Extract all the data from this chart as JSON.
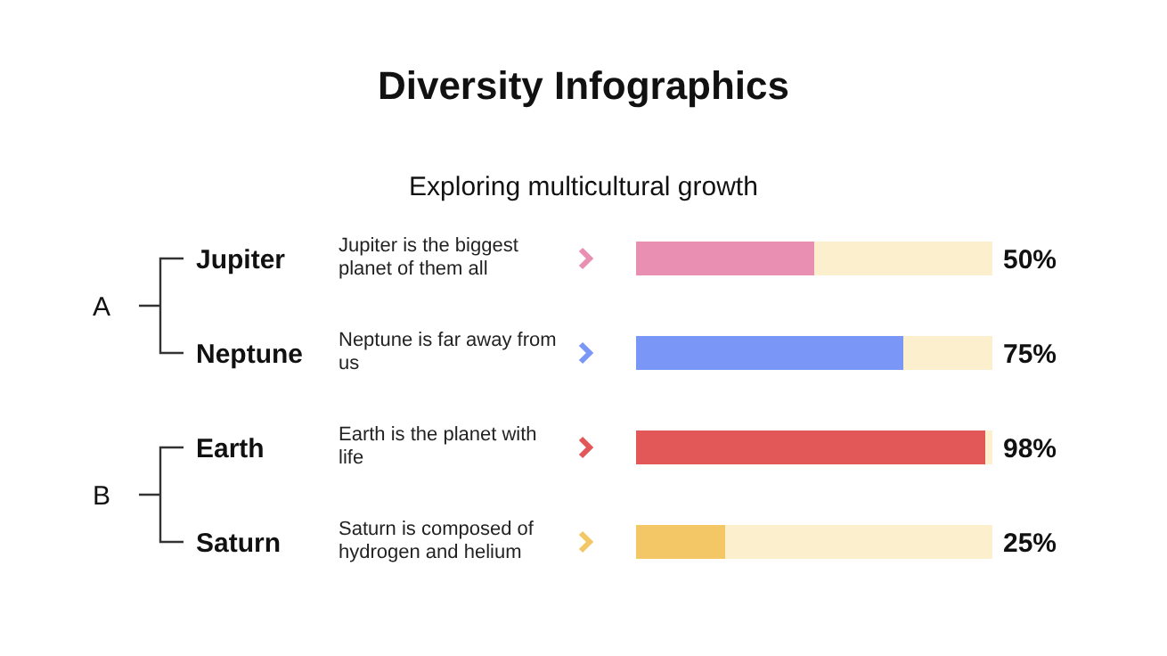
{
  "chart_data": {
    "type": "bar",
    "orientation": "horizontal",
    "stacked": true,
    "title": "Diversity Infographics",
    "subtitle": "Exploring multicultural growth",
    "categories": [
      "Jupiter",
      "Neptune",
      "Earth",
      "Saturn"
    ],
    "series": [
      {
        "values": [
          50,
          75,
          98,
          25
        ],
        "colors": [
          "#e88fb2",
          "#7a96f7",
          "#e25858",
          "#f4c766"
        ],
        "value_labels": [
          "50%",
          "75%",
          "98%",
          "25%"
        ]
      },
      {
        "values": [
          50,
          25,
          2,
          75
        ],
        "color": "#fcefcd"
      }
    ],
    "xlim": [
      0,
      100
    ],
    "tick_labels": "y",
    "annotations": [
      "A",
      "B",
      "Jupiter is the biggest planet of them all",
      "Neptune is far away from us",
      "Earth is the planet with life",
      "Saturn is composed of hydrogen and helium"
    ]
  }
}
